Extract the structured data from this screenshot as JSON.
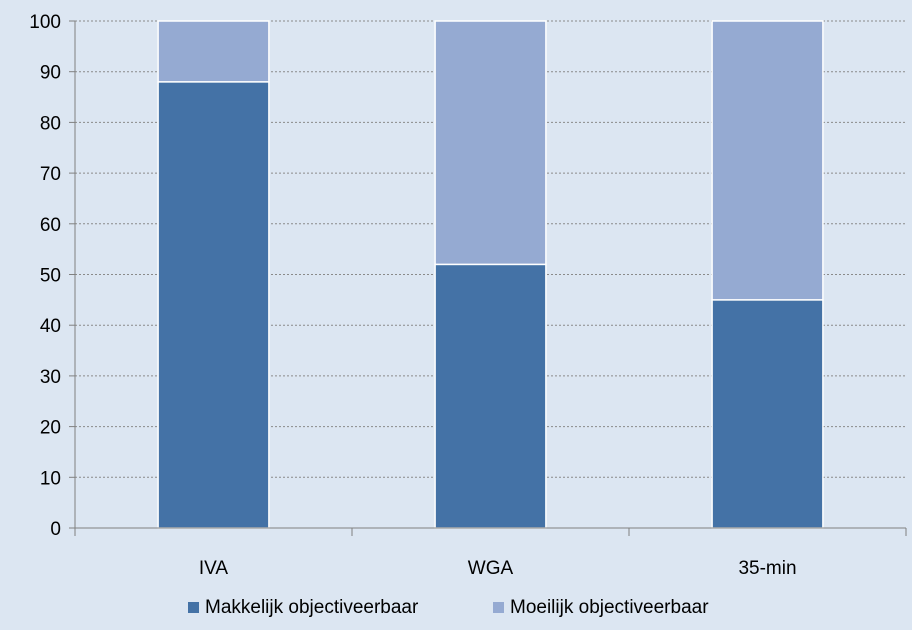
{
  "chart_data": {
    "type": "bar",
    "stacked": true,
    "categories": [
      "IVA",
      "WGA",
      "35-min"
    ],
    "series": [
      {
        "name": "Makkelijk objectiveerbaar",
        "values": [
          88,
          52,
          45
        ],
        "color": "#4472a6"
      },
      {
        "name": "Moeilijk objectiveerbaar",
        "values": [
          12,
          48,
          55
        ],
        "color": "#95aad2"
      }
    ],
    "ylim": [
      0,
      100
    ],
    "yticks": [
      0,
      10,
      20,
      30,
      40,
      50,
      60,
      70,
      80,
      90,
      100
    ],
    "grid": true,
    "legend_position": "bottom",
    "background": "#dce6f2"
  }
}
